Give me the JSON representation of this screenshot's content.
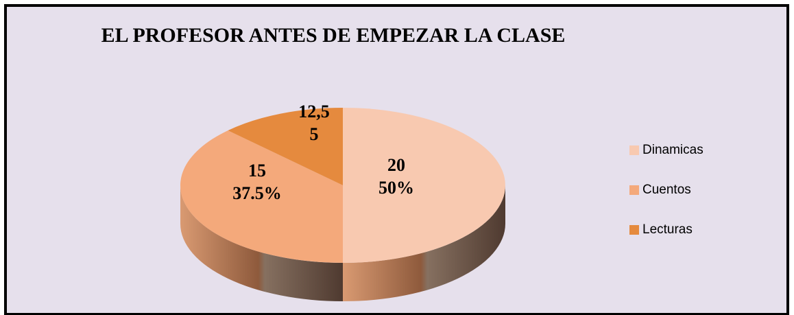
{
  "chart_data": {
    "type": "pie3d",
    "title": "EL PROFESOR ANTES DE EMPEZAR LA CLASE",
    "categories": [
      "Dinamicas",
      "Cuentos",
      "Lecturas"
    ],
    "values": [
      20,
      15,
      5
    ],
    "percentages": [
      50,
      37.5,
      12.5
    ],
    "percentage_labels": [
      "50%",
      "37.5%",
      "12,5"
    ],
    "colors": [
      "#f8c9b0",
      "#f4a97b",
      "#e58a3e"
    ],
    "legend": "right"
  }
}
